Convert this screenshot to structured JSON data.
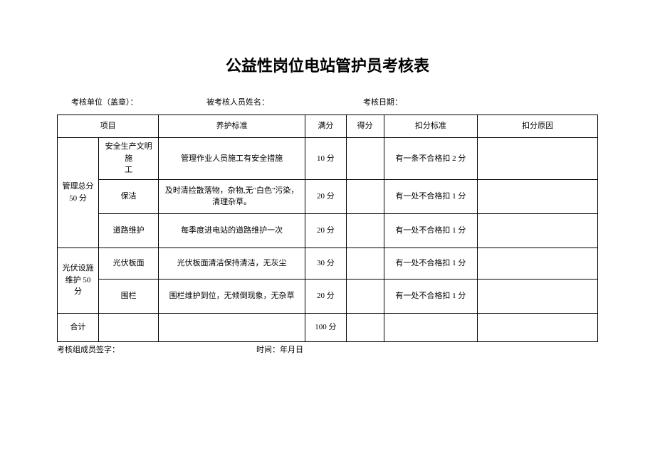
{
  "title": "公益性岗位电站管护员考核表",
  "header": {
    "unit_label": "考核单位（盖章）：",
    "name_label": "被考核人员姓名：",
    "date_label": "考核日期："
  },
  "columns": {
    "project": "项目",
    "standard": "养护标准",
    "full_score": "满分",
    "score": "得分",
    "deduct_std": "扣分标准",
    "deduct_reason": "扣分原因"
  },
  "groups": [
    {
      "group_label": "管理总分\n50 分",
      "rows": [
        {
          "item": "安全生产文明施\n工",
          "standard": "管理作业人员施工有安全措施",
          "full": "10 分",
          "score": "",
          "deduct_std": "有一条不合格扣 2 分",
          "reason": ""
        },
        {
          "item": "保洁",
          "standard": "及时清捡散落物，杂物,无\"白色\"污染，\n清理杂草。",
          "full": "20 分",
          "score": "",
          "deduct_std": "有一处不合格扣 1 分",
          "reason": ""
        },
        {
          "item": "道路维护",
          "standard": "每季度进电站的道路维护一次",
          "full": "20 分",
          "score": "",
          "deduct_std": "有一处不合格扣 1 分",
          "reason": ""
        }
      ]
    },
    {
      "group_label": "光伏设施\n维护 50 分",
      "rows": [
        {
          "item": "光伏板面",
          "standard": "光伏板面清洁保持清洁，无灰尘",
          "full": "30 分",
          "score": "",
          "deduct_std": "有一处不合格扣 1 分",
          "reason": ""
        },
        {
          "item": "围栏",
          "standard": "围栏维护到位，无倾倒现象，无杂草",
          "full": "20 分",
          "score": "",
          "deduct_std": "有一处不合格扣 1 分",
          "reason": ""
        }
      ]
    }
  ],
  "total_row": {
    "label": "合计",
    "full": "100 分"
  },
  "footer": {
    "sign_label": "考核组成员签字：",
    "time_label": "时间：年月日"
  }
}
